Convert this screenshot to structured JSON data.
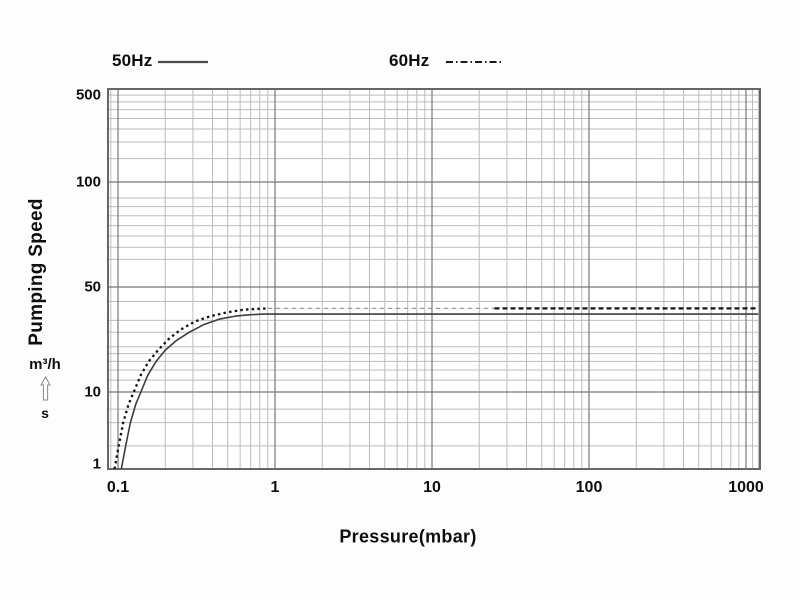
{
  "legend": {
    "items": [
      {
        "label": "50Hz",
        "swatch": "solid-line"
      },
      {
        "label": "60Hz",
        "swatch": "dashed-line"
      }
    ]
  },
  "chart_data": {
    "type": "line",
    "title": "",
    "xlabel": "Pressure(mbar)",
    "ylabel": "Pumping Speed",
    "y_unit_numerator": "m³/h",
    "y_unit_denominator": "s",
    "x_axis": {
      "scale": "log",
      "range": [
        0.086,
        1255
      ],
      "ticks": [
        {
          "v": 0.1,
          "label": "0.1"
        },
        {
          "v": 1,
          "label": "1"
        },
        {
          "v": 10,
          "label": "10"
        },
        {
          "v": 100,
          "label": "100"
        },
        {
          "v": 1000,
          "label": "1000"
        }
      ],
      "minor_gridlines": [
        0.09,
        0.2,
        0.3,
        0.4,
        0.5,
        0.6,
        0.7,
        0.8,
        0.9,
        2,
        3,
        4,
        5,
        6,
        7,
        8,
        9,
        20,
        30,
        40,
        50,
        60,
        70,
        80,
        90,
        200,
        300,
        400,
        500,
        600,
        700,
        800,
        900,
        1100,
        1200
      ]
    },
    "y_axis": {
      "scale": "log",
      "range": [
        1,
        500
      ],
      "ticks": [
        {
          "v": 500,
          "label": "500"
        },
        {
          "v": 100,
          "label": "100"
        },
        {
          "v": 50,
          "label": "50"
        },
        {
          "v": 10,
          "label": "10"
        },
        {
          "v": 1,
          "label": "1"
        }
      ],
      "minor_gridlines": [
        2,
        4,
        6,
        12,
        14,
        16,
        18,
        20,
        25,
        30,
        40,
        60,
        65,
        70,
        75,
        80,
        85,
        90,
        150,
        200,
        250,
        300,
        350,
        400,
        450
      ]
    },
    "series": [
      {
        "name": "50Hz",
        "line_style": "solid",
        "color": "#3d3d3d",
        "max_speed": 33,
        "points": [
          [
            0.105,
            1
          ],
          [
            0.112,
            2
          ],
          [
            0.12,
            4
          ],
          [
            0.13,
            7
          ],
          [
            0.14,
            10
          ],
          [
            0.155,
            13
          ],
          [
            0.175,
            16
          ],
          [
            0.2,
            19
          ],
          [
            0.235,
            22
          ],
          [
            0.285,
            25
          ],
          [
            0.35,
            28
          ],
          [
            0.44,
            30.5
          ],
          [
            0.56,
            32
          ],
          [
            0.7,
            32.7
          ],
          [
            0.85,
            33
          ],
          [
            1200,
            33
          ]
        ]
      },
      {
        "name": "60Hz",
        "line_style": "dash-dot",
        "color": "#141414",
        "max_speed": 36,
        "segments": [
          {
            "style": "dot-bold",
            "points": [
              [
                0.095,
                1
              ],
              [
                0.101,
                2
              ],
              [
                0.108,
                4
              ],
              [
                0.117,
                7
              ],
              [
                0.126,
                10
              ],
              [
                0.14,
                13
              ],
              [
                0.157,
                16
              ],
              [
                0.18,
                19
              ],
              [
                0.21,
                22.5
              ],
              [
                0.25,
                26
              ],
              [
                0.31,
                29.5
              ],
              [
                0.39,
                32
              ],
              [
                0.5,
                34
              ],
              [
                0.63,
                35.3
              ],
              [
                0.78,
                35.8
              ],
              [
                0.9,
                36
              ]
            ]
          },
          {
            "style": "dash-light",
            "points": [
              [
                0.9,
                36
              ],
              [
                25,
                36
              ]
            ]
          },
          {
            "style": "dash-bold",
            "points": [
              [
                25,
                36
              ],
              [
                1200,
                36
              ]
            ]
          }
        ]
      }
    ],
    "legend_position": "top"
  },
  "colors": {
    "background": "#fdfdfd",
    "plot_background": "#ffffff",
    "grid_major": "#787878",
    "grid_minor": "#bdbdbd",
    "border": "#666666",
    "text": "#0e0e0e",
    "dash_light": "#9b9b9b"
  }
}
